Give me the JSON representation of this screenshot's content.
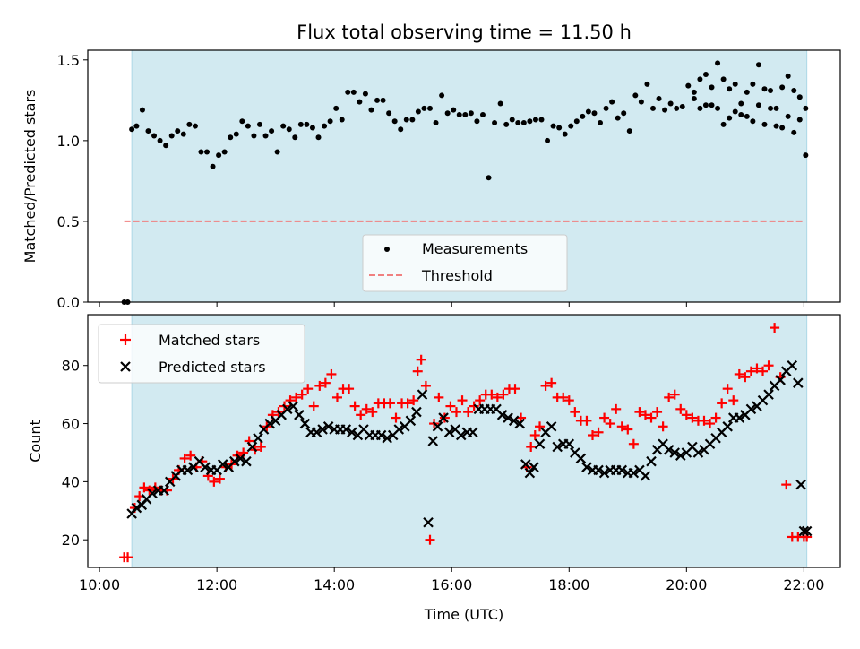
{
  "title": "Flux total observing time = 11.50 h",
  "colors": {
    "band": "#add8e6",
    "threshold": "#f08080",
    "measurements": "#000000",
    "matched": "#ff0000",
    "predicted": "#000000"
  },
  "chart_data": [
    {
      "type": "scatter",
      "panel": "top",
      "ylabel": "Matched/Predicted stars",
      "xlabel": "",
      "x_unit": "hours (UTC)",
      "xlim": [
        9.8,
        22.62
      ],
      "ylim": [
        0,
        1.56
      ],
      "yticks": [
        0,
        0.5,
        1.0,
        1.5
      ],
      "ytick_labels": [
        "0.0",
        "0.5",
        "1.0",
        "1.5"
      ],
      "observing_window": [
        10.55,
        22.05
      ],
      "legend": {
        "placement": "lower-center",
        "entries": [
          "Measurements",
          "Threshold"
        ]
      },
      "threshold": {
        "name": "Threshold",
        "y": 0.5,
        "x_range": [
          10.42,
          22.0
        ]
      },
      "series": [
        {
          "name": "Measurements",
          "marker": "dot",
          "x": [
            10.42,
            10.48,
            10.55,
            10.63,
            10.73,
            10.83,
            10.93,
            11.03,
            11.13,
            11.23,
            11.33,
            11.43,
            11.53,
            11.63,
            11.73,
            11.83,
            11.93,
            12.03,
            12.13,
            12.23,
            12.33,
            12.43,
            12.53,
            12.63,
            12.73,
            12.83,
            12.93,
            13.03,
            13.13,
            13.23,
            13.33,
            13.43,
            13.53,
            13.63,
            13.73,
            13.83,
            13.93,
            14.03,
            14.13,
            14.23,
            14.33,
            14.43,
            14.53,
            14.63,
            14.73,
            14.83,
            14.93,
            15.03,
            15.13,
            15.23,
            15.33,
            15.43,
            15.53,
            15.63,
            15.73,
            15.83,
            15.93,
            16.03,
            16.13,
            16.23,
            16.33,
            16.43,
            16.53,
            16.63,
            16.73,
            16.83,
            16.93,
            17.03,
            17.13,
            17.23,
            17.33,
            17.43,
            17.53,
            17.63,
            17.73,
            17.83,
            17.93,
            18.03,
            18.13,
            18.23,
            18.33,
            18.43,
            18.53,
            18.63,
            18.73,
            18.83,
            18.93,
            19.03,
            19.13,
            19.23,
            19.33,
            19.43,
            19.53,
            19.63,
            19.73,
            19.83,
            19.93,
            20.03,
            20.13,
            20.23,
            20.33,
            20.43,
            20.53,
            20.63,
            20.73,
            20.83,
            20.93,
            21.03,
            21.13,
            21.23,
            21.33,
            21.43,
            21.53,
            21.63,
            21.73,
            21.83,
            21.93,
            22.03
          ],
          "y": [
            0.0,
            0.0,
            1.07,
            1.09,
            1.19,
            1.06,
            1.03,
            1.0,
            0.97,
            1.03,
            1.06,
            1.04,
            1.1,
            1.09,
            0.93,
            0.93,
            0.84,
            0.91,
            0.93,
            1.02,
            1.04,
            1.12,
            1.09,
            1.03,
            1.1,
            1.03,
            1.06,
            0.93,
            1.09,
            1.07,
            1.02,
            1.1,
            1.1,
            1.08,
            1.02,
            1.09,
            1.12,
            1.2,
            1.13,
            1.3,
            1.3,
            1.24,
            1.29,
            1.19,
            1.25,
            1.25,
            1.17,
            1.12,
            1.07,
            1.13,
            1.13,
            1.18,
            1.2,
            1.2,
            1.11,
            1.28,
            1.17,
            1.19,
            1.16,
            1.16,
            1.17,
            1.12,
            1.16,
            0.77,
            1.11,
            1.23,
            1.1,
            1.13,
            1.11,
            1.11,
            1.12,
            1.13,
            1.13,
            1.0,
            1.09,
            1.08,
            1.04,
            1.09,
            1.12,
            1.15,
            1.18,
            1.17,
            1.11,
            1.2,
            1.24,
            1.14,
            1.17,
            1.06,
            1.28,
            1.24,
            1.35,
            1.2,
            1.26,
            1.19,
            1.23,
            1.2,
            1.21,
            1.34,
            1.3,
            1.38,
            1.41,
            1.33,
            1.48,
            1.38,
            1.32,
            1.35,
            1.23,
            1.3,
            1.35,
            1.47,
            1.32,
            1.31,
            1.2,
            1.33,
            1.4,
            1.31,
            1.27,
            1.2
          ],
          "x2": [
            20.13,
            20.23,
            20.33,
            20.43,
            20.53,
            20.63,
            20.73,
            20.83,
            20.93,
            21.03,
            21.13,
            21.23,
            21.33,
            21.43,
            21.53,
            21.63,
            21.73,
            21.83,
            21.93,
            22.03
          ],
          "y2": [
            1.26,
            1.2,
            1.22,
            1.22,
            1.2,
            1.1,
            1.14,
            1.18,
            1.16,
            1.15,
            1.12,
            1.22,
            1.1,
            1.2,
            1.09,
            1.08,
            1.15,
            1.05,
            1.13,
            0.91
          ]
        }
      ],
      "xticks": [
        10,
        12,
        14,
        16,
        18,
        20,
        22
      ]
    },
    {
      "type": "scatter",
      "panel": "bottom",
      "ylabel": "Count",
      "xlabel": "Time (UTC)",
      "x_unit": "hours (UTC)",
      "xlim": [
        9.8,
        22.62
      ],
      "ylim": [
        10.5,
        97.5
      ],
      "yticks": [
        20,
        40,
        60,
        80
      ],
      "ytick_labels": [
        "20",
        "40",
        "60",
        "80"
      ],
      "xticks": [
        10,
        12,
        14,
        16,
        18,
        20,
        22
      ],
      "xtick_labels": [
        "10:00",
        "12:00",
        "14:00",
        "16:00",
        "18:00",
        "20:00",
        "22:00"
      ],
      "observing_window": [
        10.55,
        22.05
      ],
      "legend": {
        "placement": "upper-left",
        "entries": [
          "Matched stars",
          "Predicted stars"
        ]
      },
      "series": [
        {
          "name": "Matched stars",
          "marker": "plus",
          "x": [
            10.42,
            10.48,
            10.6,
            10.68,
            10.76,
            10.85,
            10.95,
            11.05,
            11.15,
            11.25,
            11.35,
            11.45,
            11.55,
            11.65,
            11.75,
            11.85,
            11.95,
            12.05,
            12.15,
            12.25,
            12.35,
            12.45,
            12.55,
            12.65,
            12.75,
            12.85,
            12.95,
            13.05,
            13.15,
            13.25,
            13.35,
            13.45,
            13.55,
            13.65,
            13.75,
            13.85,
            13.95,
            14.05,
            14.15,
            14.25,
            14.35,
            14.45,
            14.55,
            14.65,
            14.75,
            14.85,
            14.95,
            15.05,
            15.15,
            15.25,
            15.35,
            15.42,
            15.48,
            15.56,
            15.63,
            15.7,
            15.78,
            15.88,
            15.98,
            16.08,
            16.18,
            16.28,
            16.38,
            16.48,
            16.58,
            16.68,
            16.78,
            16.88,
            16.98,
            17.08,
            17.18,
            17.28,
            17.35,
            17.42,
            17.5,
            17.6,
            17.7,
            17.8,
            17.9,
            18.0,
            18.1,
            18.2,
            18.3,
            18.4,
            18.5,
            18.6,
            18.7,
            18.8,
            18.9,
            19.0,
            19.1,
            19.2,
            19.3,
            19.4,
            19.5,
            19.6,
            19.7,
            19.8,
            19.9,
            20.0,
            20.1,
            20.2,
            20.3,
            20.4,
            20.5,
            20.6,
            20.7,
            20.8,
            20.9,
            21.0,
            21.1,
            21.2,
            21.3,
            21.4,
            21.5,
            21.6,
            21.7,
            21.8,
            21.9,
            22.0,
            22.05
          ],
          "y": [
            14,
            14,
            31,
            35,
            38,
            37,
            38,
            37,
            37,
            41,
            44,
            48,
            49,
            45,
            47,
            42,
            40,
            41,
            45,
            46,
            49,
            50,
            54,
            51,
            52,
            59,
            63,
            64,
            66,
            68,
            69,
            70,
            72,
            66,
            73,
            74,
            77,
            69,
            72,
            72,
            66,
            63,
            65,
            64,
            67,
            67,
            67,
            62,
            67,
            67,
            68,
            78,
            82,
            73,
            20,
            60,
            69,
            62,
            66,
            64,
            68,
            64,
            66,
            68,
            70,
            70,
            69,
            70,
            72,
            72,
            62,
            45,
            52,
            56,
            59,
            73,
            74,
            69,
            69,
            68,
            64,
            61,
            61,
            56,
            57,
            62,
            60,
            65,
            59,
            58,
            53,
            64,
            63,
            62,
            64,
            59,
            69,
            70,
            65,
            63,
            62,
            61,
            61,
            60,
            62,
            67,
            72,
            68,
            77,
            76,
            78,
            79,
            78,
            80,
            93,
            76,
            39,
            21,
            21,
            21,
            21
          ],
          "notes": ""
        },
        {
          "name": "Predicted stars",
          "marker": "x",
          "x": [
            10.55,
            10.63,
            10.72,
            10.8,
            10.9,
            11.0,
            11.1,
            11.2,
            11.3,
            11.4,
            11.5,
            11.6,
            11.7,
            11.8,
            11.9,
            12.0,
            12.1,
            12.2,
            12.3,
            12.4,
            12.5,
            12.6,
            12.7,
            12.8,
            12.9,
            13.0,
            13.1,
            13.2,
            13.3,
            13.4,
            13.5,
            13.6,
            13.7,
            13.8,
            13.9,
            14.0,
            14.1,
            14.2,
            14.3,
            14.4,
            14.5,
            14.6,
            14.7,
            14.8,
            14.9,
            15.0,
            15.1,
            15.2,
            15.3,
            15.4,
            15.5,
            15.6,
            15.68,
            15.76,
            15.86,
            15.96,
            16.06,
            16.16,
            16.26,
            16.36,
            16.46,
            16.56,
            16.66,
            16.76,
            16.86,
            16.96,
            17.06,
            17.16,
            17.26,
            17.33,
            17.4,
            17.5,
            17.6,
            17.7,
            17.8,
            17.9,
            18.0,
            18.1,
            18.2,
            18.3,
            18.4,
            18.5,
            18.6,
            18.7,
            18.8,
            18.9,
            19.0,
            19.1,
            19.2,
            19.3,
            19.4,
            19.5,
            19.6,
            19.7,
            19.8,
            19.9,
            20.0,
            20.1,
            20.2,
            20.3,
            20.4,
            20.5,
            20.6,
            20.7,
            20.8,
            20.9,
            21.0,
            21.1,
            21.2,
            21.3,
            21.4,
            21.5,
            21.6,
            21.7,
            21.8,
            21.9,
            21.95,
            22.0,
            22.05
          ],
          "y": [
            29,
            31,
            32,
            34,
            36,
            37,
            37,
            40,
            42,
            44,
            44,
            45,
            47,
            45,
            44,
            44,
            46,
            45,
            47,
            48,
            47,
            52,
            55,
            58,
            60,
            61,
            63,
            65,
            66,
            63,
            60,
            57,
            57,
            58,
            59,
            58,
            58,
            58,
            57,
            56,
            58,
            56,
            56,
            56,
            55,
            56,
            58,
            59,
            61,
            64,
            70,
            26,
            54,
            59,
            62,
            57,
            58,
            56,
            57,
            57,
            65,
            65,
            65,
            65,
            63,
            62,
            61,
            60,
            46,
            43,
            45,
            53,
            57,
            59,
            52,
            53,
            53,
            50,
            48,
            45,
            44,
            44,
            43,
            44,
            44,
            44,
            43,
            43,
            44,
            42,
            47,
            51,
            53,
            51,
            50,
            49,
            50,
            52,
            50,
            51,
            53,
            55,
            57,
            59,
            62,
            62,
            63,
            65,
            66,
            68,
            70,
            73,
            75,
            78,
            80,
            74,
            39,
            23,
            23
          ],
          "notes": ""
        }
      ]
    }
  ]
}
